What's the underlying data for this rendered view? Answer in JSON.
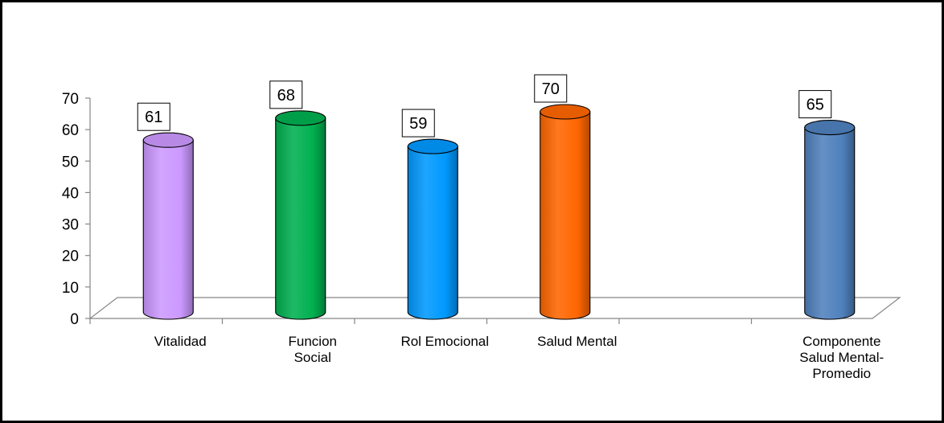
{
  "chart_data": {
    "type": "bar",
    "categories": [
      "Vitalidad",
      "Funcion Social",
      "Rol Emocional",
      "Salud Mental",
      "",
      "Componente Salud Mental-Promedio"
    ],
    "category_lines": [
      [
        "Vitalidad"
      ],
      [
        "Funcion",
        "Social"
      ],
      [
        "Rol Emocional"
      ],
      [
        "Salud Mental"
      ],
      [],
      [
        "Componente",
        "Salud Mental-",
        "Promedio"
      ]
    ],
    "values": [
      61,
      68,
      59,
      70,
      null,
      65
    ],
    "data_labels": [
      "61",
      "68",
      "59",
      "70",
      "",
      "65"
    ],
    "colors": [
      "#cc99ff",
      "#00b050",
      "#0099ff",
      "#ff6600",
      null,
      "#4f81bd"
    ],
    "yticks": [
      "0",
      "10",
      "20",
      "30",
      "40",
      "50",
      "60",
      "70"
    ],
    "ylim": [
      0,
      70
    ],
    "title": "",
    "xlabel": "",
    "ylabel": "",
    "grid": false,
    "legend": "none",
    "style": "3d-cylinder"
  }
}
